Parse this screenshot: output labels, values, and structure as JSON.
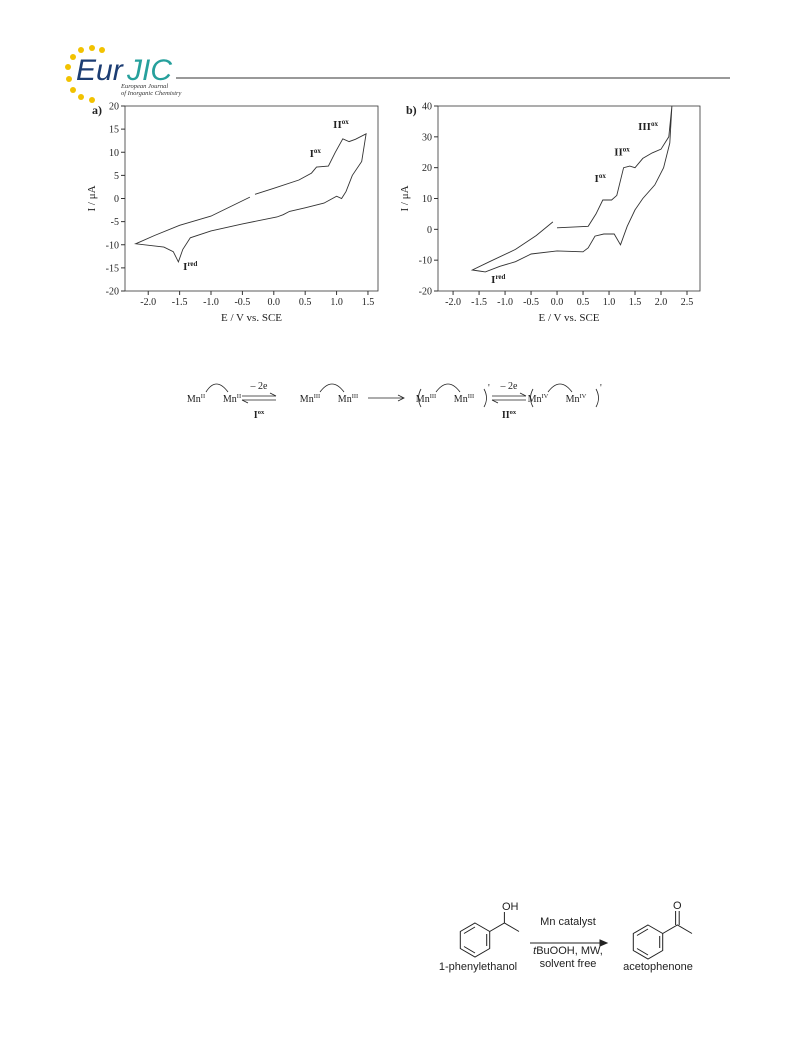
{
  "header": {
    "logo_eur": "Eur",
    "logo_jic": "JIC",
    "journal_line1": "European Journal",
    "journal_line2": "of Inorganic Chemistry"
  },
  "chart_data": [
    {
      "type": "line",
      "panel": "a)",
      "xlabel": "E / V vs. SCE",
      "ylabel": "I / μA",
      "xlim": [
        -2.37,
        1.66
      ],
      "ylim": [
        -20,
        20
      ],
      "xticks": [
        {
          "value": -2,
          "label": "-2.0"
        },
        {
          "value": -1.5,
          "label": "-1.5"
        },
        {
          "value": -1,
          "label": "-1.0"
        },
        {
          "value": -0.5,
          "label": "-0.5"
        },
        {
          "value": 0,
          "label": "0.0"
        },
        {
          "value": 0.5,
          "label": "0.5"
        },
        {
          "value": 1,
          "label": "1.0"
        },
        {
          "value": 1.5,
          "label": "1.5"
        }
      ],
      "yticks": [
        20,
        15,
        10,
        5,
        0,
        -5,
        -10,
        -15,
        -20
      ],
      "series": [
        {
          "color": "#333333",
          "x": [
            -0.3,
            0.0,
            0.4,
            0.6,
            0.68,
            0.87,
            0.98,
            1.1,
            1.2,
            1.3,
            1.47,
            1.4,
            1.25,
            1.15,
            1.08,
            1.0,
            0.8,
            0.5,
            0.25,
            0.15,
            0.05,
            -0.5,
            -1.0,
            -1.33,
            -1.45,
            -1.52,
            -1.6,
            -1.75,
            -2.2,
            -1.9,
            -1.5,
            -1.0,
            -0.38
          ],
          "values": [
            0.9,
            2.2,
            4,
            5.5,
            6.8,
            7,
            10,
            12.9,
            12.3,
            12.8,
            14,
            8,
            5,
            1.5,
            0,
            0.5,
            -1,
            -2,
            -2.8,
            -3.5,
            -4,
            -5.5,
            -7,
            -8.5,
            -11,
            -13.7,
            -11.5,
            -10.5,
            -9.8,
            -8,
            -5.8,
            -3.8,
            0.3
          ]
        }
      ],
      "annotations": [
        {
          "text": "I",
          "sup": "red",
          "x": -1.33,
          "y": -15.5
        },
        {
          "text": "I",
          "sup": "ox",
          "x": 0.66,
          "y": 9
        },
        {
          "text": "II",
          "sup": "ox",
          "x": 1.07,
          "y": 15.2
        }
      ]
    },
    {
      "type": "line",
      "panel": "b)",
      "xlabel": "E / V vs. SCE",
      "ylabel": "I / μA",
      "xlim": [
        -2.29,
        2.75
      ],
      "ylim": [
        -20,
        40
      ],
      "xticks": [
        {
          "value": -2,
          "label": "-2.0"
        },
        {
          "value": -1.5,
          "label": "-1.5"
        },
        {
          "value": -1,
          "label": "-1.0"
        },
        {
          "value": -0.5,
          "label": "-0.5"
        },
        {
          "value": 0,
          "label": "0.0"
        },
        {
          "value": 0.5,
          "label": "0.5"
        },
        {
          "value": 1,
          "label": "1.0"
        },
        {
          "value": 1.5,
          "label": "1.5"
        },
        {
          "value": 2,
          "label": "2.0"
        },
        {
          "value": 2.5,
          "label": "2.5"
        }
      ],
      "yticks": [
        40,
        30,
        20,
        10,
        0,
        -10,
        -20
      ],
      "series": [
        {
          "color": "#333333",
          "x": [
            0.0,
            0.6,
            0.75,
            0.88,
            1.05,
            1.15,
            1.28,
            1.4,
            1.5,
            1.65,
            1.83,
            2.0,
            2.15,
            2.21,
            2.17,
            2.05,
            1.88,
            1.65,
            1.5,
            1.35,
            1.22,
            1.1,
            0.9,
            0.73,
            0.6,
            0.5,
            0.0,
            -0.5,
            -0.8,
            -1.1,
            -1.38,
            -1.5,
            -1.63,
            -1.3,
            -0.8,
            -0.4,
            -0.08
          ],
          "values": [
            0.5,
            1,
            5,
            9.5,
            9.5,
            11,
            20,
            20.5,
            20,
            23,
            24.8,
            26,
            30,
            40,
            28,
            20,
            14.4,
            10,
            6.3,
            1,
            -5,
            -1.5,
            -1.5,
            -2.2,
            -6,
            -7.3,
            -7,
            -8,
            -10.5,
            -12,
            -13.8,
            -13.5,
            -13.2,
            -10.5,
            -6.5,
            -2,
            2.4
          ]
        }
      ],
      "annotations": [
        {
          "text": "I",
          "sup": "red",
          "x": -1.13,
          "y": -17.4
        },
        {
          "text": "I",
          "sup": "ox",
          "x": 0.83,
          "y": 15.4
        },
        {
          "text": "II",
          "sup": "ox",
          "x": 1.25,
          "y": 24
        },
        {
          "text": "III",
          "sup": "ox",
          "x": 1.75,
          "y": 32.2
        }
      ]
    }
  ],
  "scheme1": {
    "species": [
      {
        "t": "Mn",
        "sup": "II"
      },
      {
        "t": "Mn",
        "sup": "II"
      },
      {
        "t": "Mn",
        "sup": "III"
      },
      {
        "t": "Mn",
        "sup": "III"
      },
      {
        "t": "Mn",
        "sup": "III"
      },
      {
        "t": "Mn",
        "sup": "III"
      },
      {
        "t": "Mn",
        "sup": "IV"
      },
      {
        "t": "Mn",
        "sup": "IV"
      }
    ],
    "reagents": [
      "– 2e",
      "– 2e"
    ],
    "steps": [
      {
        "t": "I",
        "sup": "ox"
      },
      {
        "t": "II",
        "sup": "ox"
      }
    ],
    "charges": [
      "'",
      "'"
    ]
  },
  "scheme2": {
    "substituent1": "OH",
    "substituent2": "O",
    "conditions1": "Mn catalyst",
    "conditions2_italic": "t",
    "conditions2": "BuOOH, MW,",
    "conditions3": "solvent free",
    "reactant": "1-phenylethanol",
    "product": "acetophenone"
  }
}
